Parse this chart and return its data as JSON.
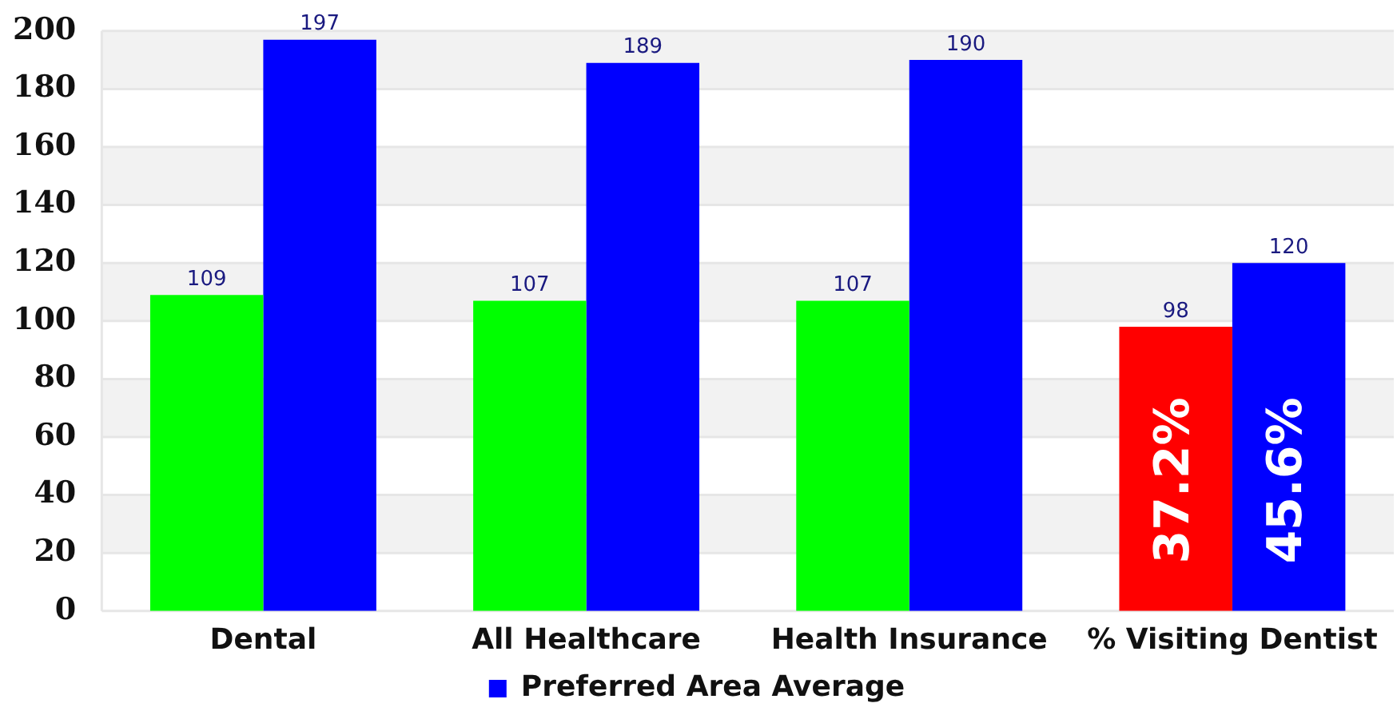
{
  "chart_data": {
    "type": "bar",
    "categories": [
      "Dental",
      "All Healthcare",
      "Health Insurance",
      "% Visiting Dentist"
    ],
    "series": [
      {
        "colors": [
          "#00ff00",
          "#00ff00",
          "#00ff00",
          "#ff0000"
        ],
        "values": [
          109,
          107,
          107,
          98
        ]
      },
      {
        "name": "Preferred Area Average",
        "color": "#0000ff",
        "values": [
          197,
          189,
          190,
          120
        ]
      }
    ],
    "ylim": [
      0,
      200
    ],
    "yticks": [
      0,
      20,
      40,
      60,
      80,
      100,
      120,
      140,
      160,
      180,
      200
    ],
    "grid": "y",
    "legend": "bottom",
    "data_labels": true,
    "annotations": [
      {
        "text": "37.2%",
        "x": "% Visiting Dentist",
        "y": 45
      },
      {
        "text": "45.6%",
        "x": "% Visiting Dentist",
        "y": 45
      }
    ]
  }
}
